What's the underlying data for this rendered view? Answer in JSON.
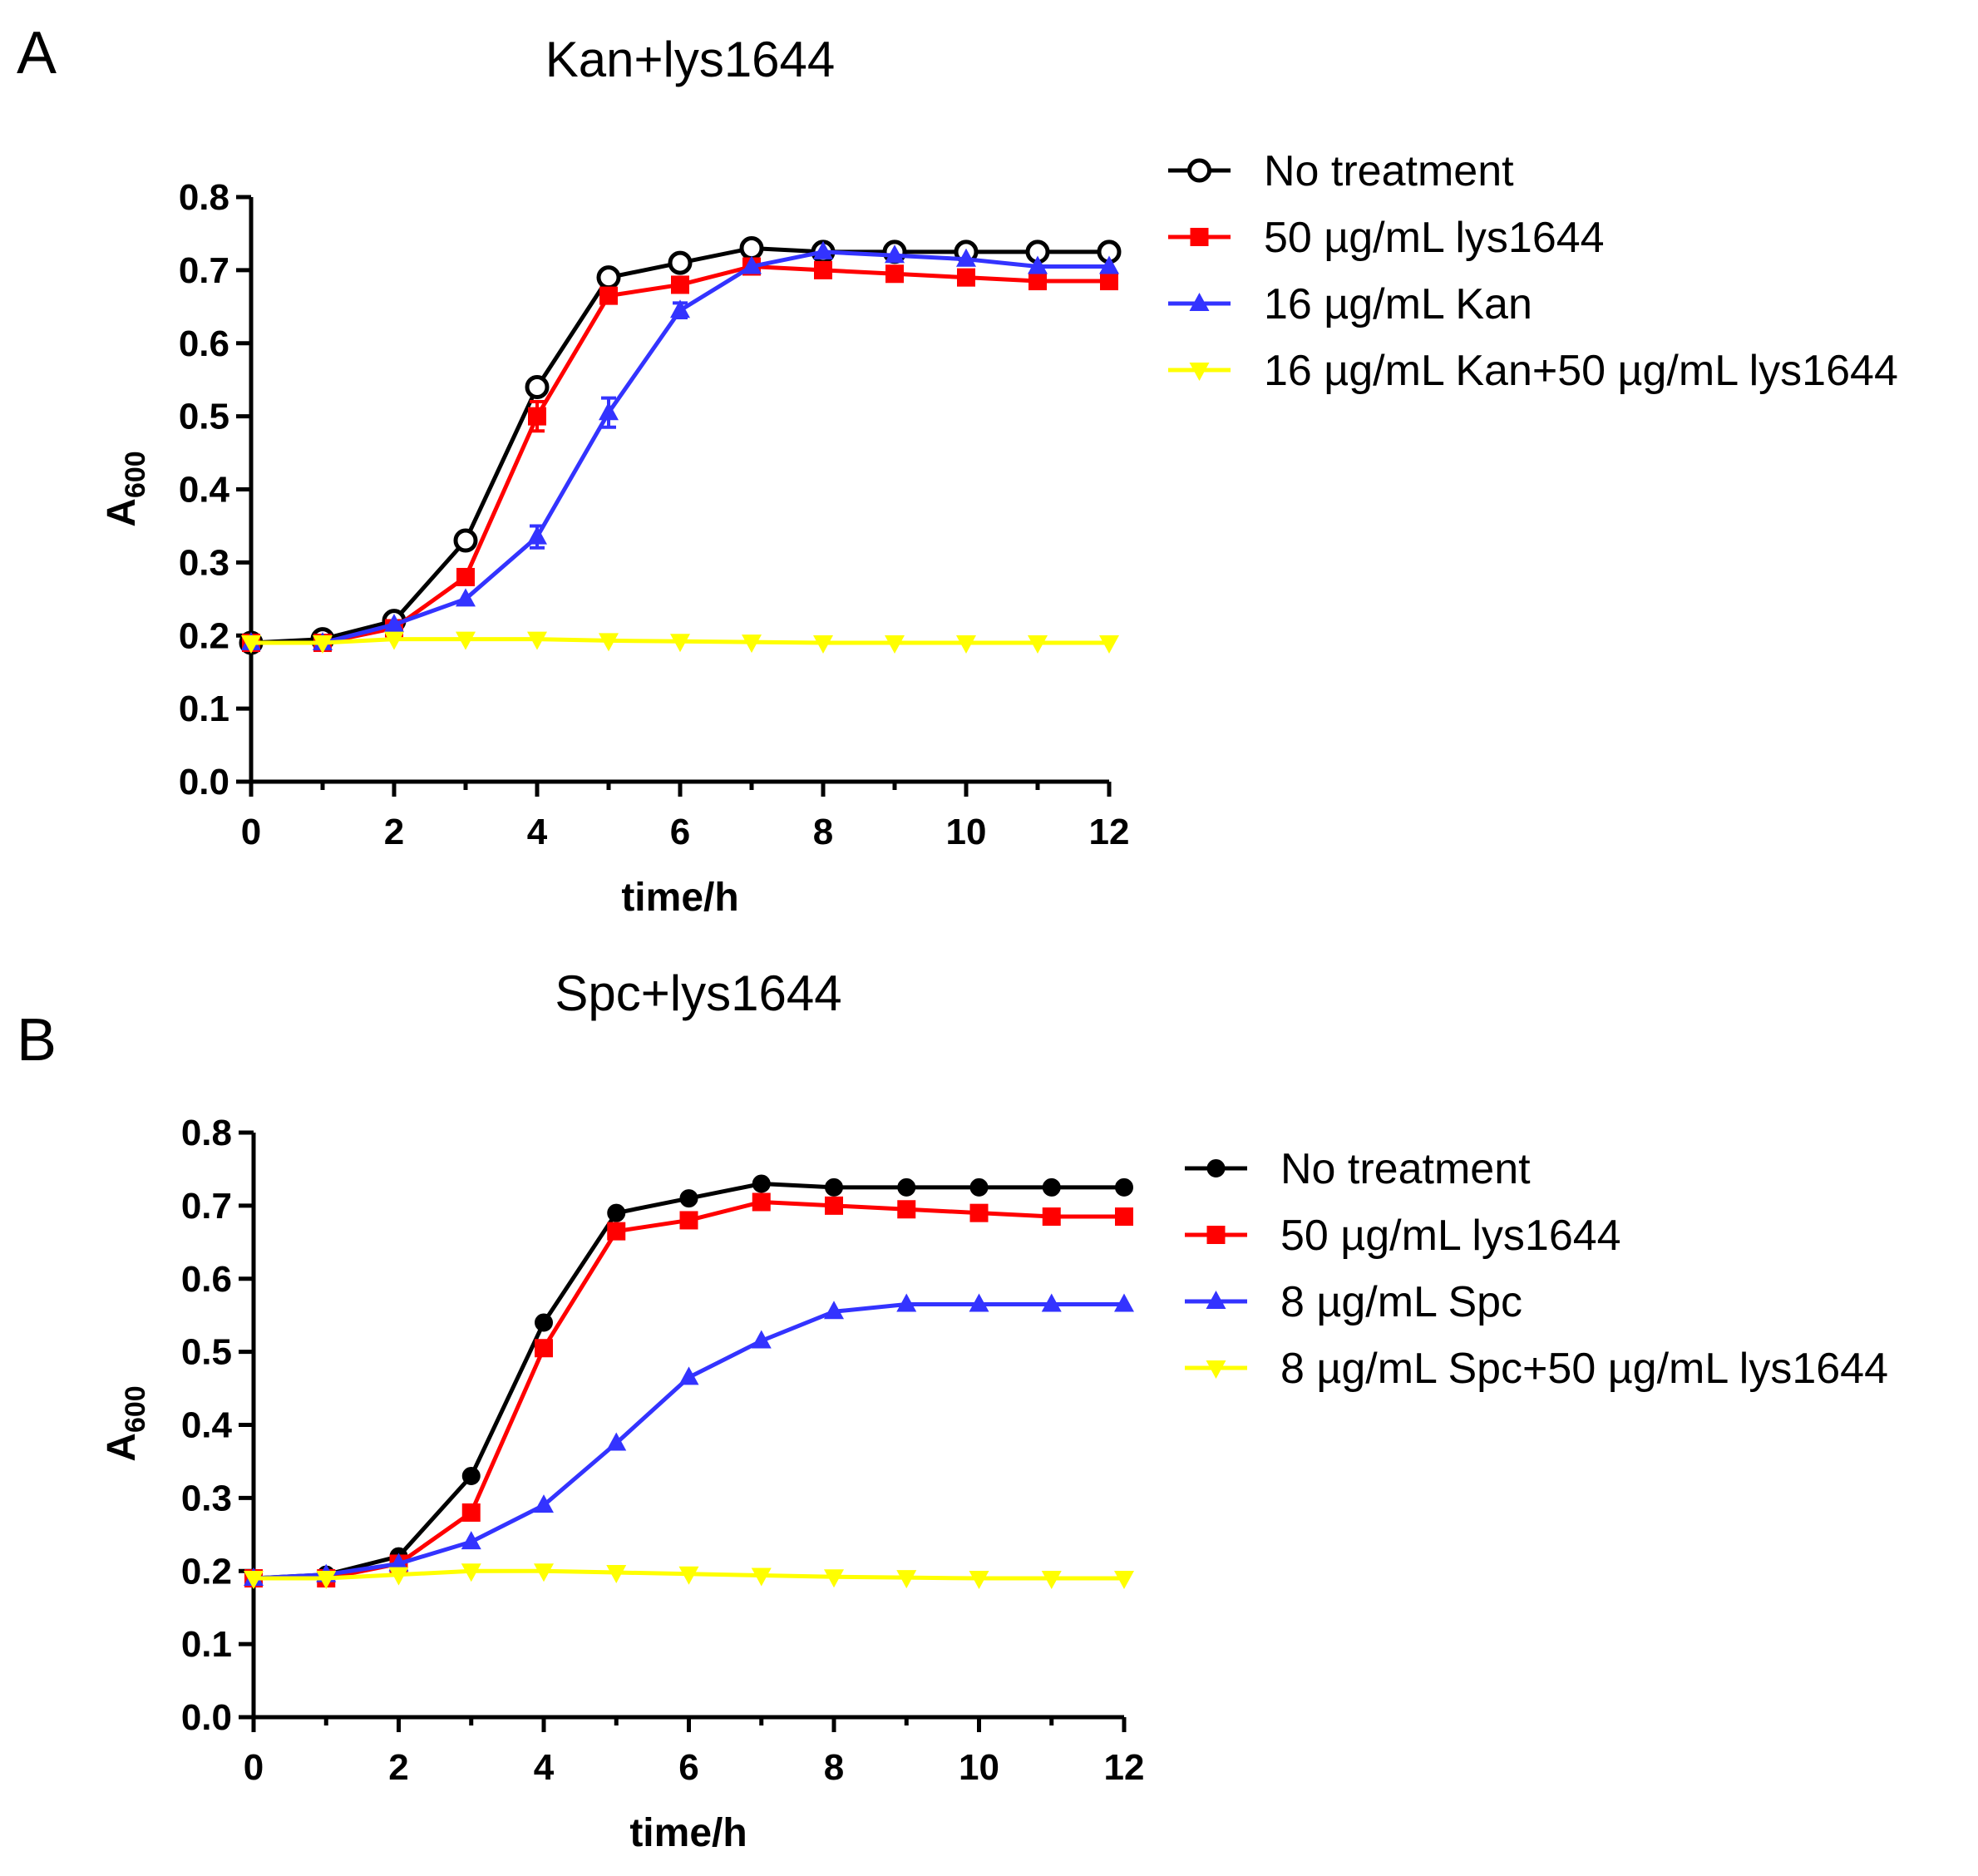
{
  "panels": [
    {
      "letter": "A",
      "chart_data": {
        "type": "line",
        "title": "Kan+lys1644",
        "xlabel": "time/h",
        "ylabel": "A600",
        "ylabel_main": "A",
        "ylabel_sub": "600",
        "xlim": [
          0,
          12
        ],
        "ylim": [
          0.0,
          0.8
        ],
        "xticks": [
          "0",
          "2",
          "4",
          "6",
          "8",
          "10",
          "12"
        ],
        "yticks": [
          "0.0",
          "0.1",
          "0.2",
          "0.3",
          "0.4",
          "0.5",
          "0.6",
          "0.7",
          "0.8"
        ],
        "grid": false,
        "legend_position": "right",
        "x": [
          0,
          1,
          2,
          3,
          4,
          5,
          6,
          7,
          8,
          9,
          10,
          11,
          12
        ],
        "series": [
          {
            "name": "No treatment",
            "color": "#000000",
            "marker": "open-circle",
            "values": [
              0.19,
              0.195,
              0.22,
              0.33,
              0.54,
              0.69,
              0.71,
              0.73,
              0.725,
              0.725,
              0.725,
              0.725,
              0.725
            ],
            "errors": [
              0,
              0,
              0,
              0,
              0.005,
              0,
              0,
              0,
              0,
              0,
              0,
              0,
              0
            ]
          },
          {
            "name": "50 µg/mL lys1644",
            "color": "#ff0000",
            "marker": "square",
            "values": [
              0.19,
              0.19,
              0.21,
              0.28,
              0.5,
              0.665,
              0.68,
              0.705,
              0.7,
              0.695,
              0.69,
              0.685,
              0.685
            ],
            "errors": [
              0,
              0,
              0,
              0,
              0.02,
              0.01,
              0,
              0,
              0,
              0,
              0,
              0,
              0
            ]
          },
          {
            "name": "16 µg/mL Kan",
            "color": "#3333ff",
            "marker": "triangle-up",
            "values": [
              0.19,
              0.19,
              0.215,
              0.25,
              0.335,
              0.505,
              0.645,
              0.705,
              0.725,
              0.72,
              0.715,
              0.705,
              0.705
            ],
            "errors": [
              0,
              0,
              0,
              0,
              0.015,
              0.02,
              0.01,
              0,
              0,
              0,
              0,
              0,
              0
            ]
          },
          {
            "name": "16 µg/mL Kan+50 µg/mL lys1644",
            "color": "#ffff00",
            "marker": "triangle-down",
            "values": [
              0.19,
              0.19,
              0.195,
              0.195,
              0.195,
              0.193,
              0.192,
              0.191,
              0.19,
              0.19,
              0.19,
              0.19,
              0.19
            ],
            "errors": [
              0,
              0,
              0,
              0,
              0,
              0,
              0,
              0,
              0,
              0,
              0,
              0,
              0
            ]
          }
        ]
      }
    },
    {
      "letter": "B",
      "chart_data": {
        "type": "line",
        "title": "Spc+lys1644",
        "xlabel": "time/h",
        "ylabel": "A600",
        "ylabel_main": "A",
        "ylabel_sub": "600",
        "xlim": [
          0,
          12
        ],
        "ylim": [
          0.0,
          0.8
        ],
        "xticks": [
          "0",
          "2",
          "4",
          "6",
          "8",
          "10",
          "12"
        ],
        "yticks": [
          "0.0",
          "0.1",
          "0.2",
          "0.3",
          "0.4",
          "0.5",
          "0.6",
          "0.7",
          "0.8"
        ],
        "grid": false,
        "legend_position": "right",
        "x": [
          0,
          1,
          2,
          3,
          4,
          5,
          6,
          7,
          8,
          9,
          10,
          11,
          12
        ],
        "series": [
          {
            "name": "No treatment",
            "color": "#000000",
            "marker": "filled-circle",
            "values": [
              0.19,
              0.195,
              0.22,
              0.33,
              0.54,
              0.69,
              0.71,
              0.73,
              0.725,
              0.725,
              0.725,
              0.725,
              0.725
            ],
            "errors": [
              0,
              0,
              0,
              0,
              0,
              0,
              0,
              0,
              0,
              0,
              0,
              0,
              0
            ]
          },
          {
            "name": "50 µg/mL lys1644",
            "color": "#ff0000",
            "marker": "square",
            "values": [
              0.19,
              0.19,
              0.21,
              0.28,
              0.505,
              0.665,
              0.68,
              0.705,
              0.7,
              0.695,
              0.69,
              0.685,
              0.685
            ],
            "errors": [
              0,
              0,
              0,
              0,
              0,
              0,
              0,
              0,
              0,
              0,
              0,
              0,
              0
            ]
          },
          {
            "name": "8 µg/mL Spc",
            "color": "#3333ff",
            "marker": "triangle-up",
            "values": [
              0.19,
              0.195,
              0.21,
              0.24,
              0.29,
              0.375,
              0.465,
              0.515,
              0.555,
              0.565,
              0.565,
              0.565,
              0.565
            ],
            "errors": [
              0,
              0,
              0,
              0,
              0,
              0,
              0,
              0,
              0,
              0,
              0,
              0,
              0
            ]
          },
          {
            "name": "8 µg/mL Spc+50 µg/mL lys1644",
            "color": "#ffff00",
            "marker": "triangle-down",
            "values": [
              0.19,
              0.19,
              0.195,
              0.2,
              0.2,
              0.198,
              0.196,
              0.194,
              0.192,
              0.191,
              0.19,
              0.19,
              0.19
            ],
            "errors": [
              0,
              0,
              0,
              0,
              0,
              0,
              0,
              0,
              0,
              0,
              0,
              0,
              0
            ]
          }
        ]
      }
    }
  ]
}
